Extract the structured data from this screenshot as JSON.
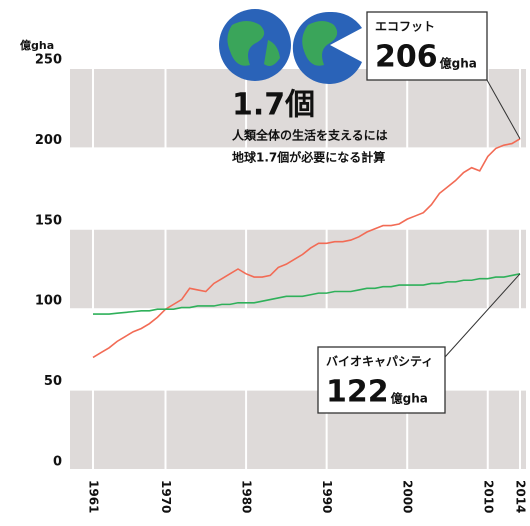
{
  "chart_data": {
    "type": "line",
    "y_unit": "億gha",
    "x": [
      1961,
      1962,
      1963,
      1964,
      1965,
      1966,
      1967,
      1968,
      1969,
      1970,
      1971,
      1972,
      1973,
      1974,
      1975,
      1976,
      1977,
      1978,
      1979,
      1980,
      1981,
      1982,
      1983,
      1984,
      1985,
      1986,
      1987,
      1988,
      1989,
      1990,
      1991,
      1992,
      1993,
      1994,
      1995,
      1996,
      1997,
      1998,
      1999,
      2000,
      2001,
      2002,
      2003,
      2004,
      2005,
      2006,
      2007,
      2008,
      2009,
      2010,
      2011,
      2012,
      2013,
      2014
    ],
    "series": [
      {
        "name": "エコフット",
        "color": "#f26b55",
        "values": [
          70,
          73,
          76,
          80,
          83,
          86,
          88,
          91,
          95,
          100,
          103,
          106,
          113,
          112,
          111,
          116,
          119,
          122,
          125,
          122,
          120,
          120,
          121,
          126,
          128,
          131,
          134,
          138,
          141,
          141,
          142,
          142,
          143,
          145,
          148,
          150,
          152,
          152,
          153,
          156,
          158,
          160,
          165,
          172,
          176,
          180,
          185,
          188,
          186,
          195,
          200,
          202,
          203,
          206
        ],
        "callout": {
          "value": 206,
          "unit": "億gha"
        }
      },
      {
        "name": "バイオキャパシティ",
        "color": "#2fb05a",
        "values": [
          97,
          97,
          97,
          97.5,
          98,
          98.5,
          99,
          99,
          100,
          100,
          100,
          101,
          101,
          102,
          102,
          102,
          103,
          103,
          104,
          104,
          104,
          105,
          106,
          107,
          108,
          108,
          108,
          109,
          110,
          110,
          111,
          111,
          111,
          112,
          113,
          113,
          114,
          114,
          115,
          115,
          115,
          115,
          116,
          116,
          117,
          117,
          118,
          118,
          119,
          119,
          120,
          120,
          121,
          122
        ],
        "callout": {
          "value": 122,
          "unit": "億gha"
        }
      }
    ],
    "xlim": [
      1961,
      2014
    ],
    "xticks": [
      1961,
      1970,
      1980,
      1990,
      2000,
      2010,
      2014
    ],
    "ylim": [
      0,
      250
    ],
    "yticks": [
      0,
      50,
      100,
      150,
      200,
      250
    ],
    "banded_grid": true,
    "annotation": {
      "headline": "1.7個",
      "lines": [
        "人類全体の生活を支えるには",
        "地球1.7個が必要になる計算"
      ]
    }
  }
}
